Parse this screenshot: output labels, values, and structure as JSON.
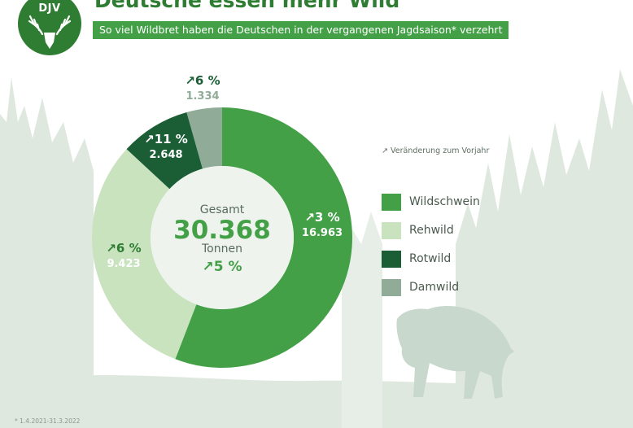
{
  "header": {
    "logo_text": "DJV",
    "title": "Deutsche essen mehr Wild",
    "subtitle": "So viel Wildbret haben die Deutschen in der vergangenen Jagdsaison* verzehrt"
  },
  "center": {
    "label_top": "Gesamt",
    "total": "30.368",
    "unit": "Tonnen",
    "change": "↗5 %"
  },
  "legend_note": "↗ Veränderung zum Vorjahr",
  "footnote": "* 1.4.2021-31.3.2022",
  "colors": {
    "wildschwein": "#43a047",
    "rehwild": "#c9e3bf",
    "rotwild": "#1b5e36",
    "damwild": "#90ac98",
    "title": "#2e7d32",
    "background_forest": "#dde7dd"
  },
  "chart_data": {
    "type": "pie",
    "variant": "donut",
    "total": 30368,
    "total_change_pct": 5,
    "series": [
      {
        "name": "Wildschwein",
        "value": 16963,
        "value_label": "16.963",
        "change_pct": 3,
        "change_label": "↗3 %",
        "color": "#43a047"
      },
      {
        "name": "Rehwild",
        "value": 9423,
        "value_label": "9.423",
        "change_pct": 6,
        "change_label": "↗6 %",
        "color": "#c9e3bf"
      },
      {
        "name": "Rotwild",
        "value": 2648,
        "value_label": "2.648",
        "change_pct": 11,
        "change_label": "↗11 %",
        "color": "#1b5e36"
      },
      {
        "name": "Damwild",
        "value": 1334,
        "value_label": "1.334",
        "change_pct": 6,
        "change_label": "↗6 %",
        "color": "#90ac98"
      }
    ],
    "legend": [
      "Wildschwein",
      "Rehwild",
      "Rotwild",
      "Damwild"
    ],
    "legend_position": "right"
  }
}
